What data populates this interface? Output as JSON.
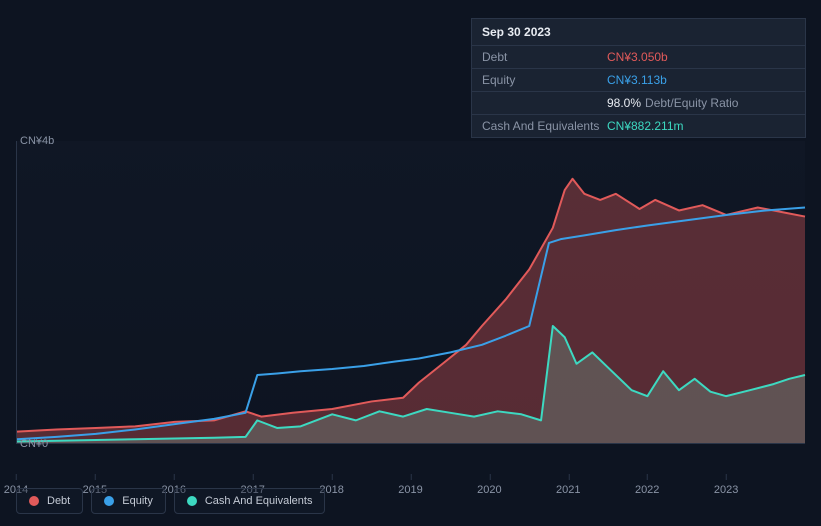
{
  "tooltip": {
    "date": "Sep 30 2023",
    "rows": [
      {
        "label": "Debt",
        "value": "CN¥3.050b",
        "color": "#e15a5a"
      },
      {
        "label": "Equity",
        "value": "CN¥3.113b",
        "color": "#3aa0e8"
      },
      {
        "label": "",
        "value": "98.0%",
        "extra": "Debt/Equity Ratio",
        "color": "#e8ecf2"
      },
      {
        "label": "Cash And Equivalents",
        "value": "CN¥882.211m",
        "color": "#3dd9c1"
      }
    ]
  },
  "chart": {
    "type": "area-line",
    "background_color": "#0d1421",
    "grid_color": "#2a3548",
    "y_axis": {
      "ticks": [
        {
          "value": 0,
          "label": "CN¥0"
        },
        {
          "value": 4,
          "label": "CN¥4b"
        }
      ],
      "min": 0,
      "max": 4
    },
    "x_axis": {
      "min": 2014,
      "max": 2024,
      "ticks": [
        2014,
        2015,
        2016,
        2017,
        2018,
        2019,
        2020,
        2021,
        2022,
        2023
      ]
    },
    "series": [
      {
        "name": "Debt",
        "color": "#e15a5a",
        "fill_opacity": 0.35,
        "line_width": 2,
        "points": [
          [
            2014.0,
            0.15
          ],
          [
            2014.5,
            0.18
          ],
          [
            2015.0,
            0.2
          ],
          [
            2015.5,
            0.22
          ],
          [
            2016.0,
            0.28
          ],
          [
            2016.5,
            0.3
          ],
          [
            2016.9,
            0.42
          ],
          [
            2017.1,
            0.35
          ],
          [
            2017.5,
            0.4
          ],
          [
            2018.0,
            0.45
          ],
          [
            2018.5,
            0.55
          ],
          [
            2018.9,
            0.6
          ],
          [
            2019.1,
            0.8
          ],
          [
            2019.4,
            1.05
          ],
          [
            2019.7,
            1.3
          ],
          [
            2019.9,
            1.55
          ],
          [
            2020.2,
            1.9
          ],
          [
            2020.5,
            2.3
          ],
          [
            2020.8,
            2.85
          ],
          [
            2020.95,
            3.35
          ],
          [
            2021.05,
            3.5
          ],
          [
            2021.2,
            3.3
          ],
          [
            2021.4,
            3.22
          ],
          [
            2021.6,
            3.3
          ],
          [
            2021.9,
            3.1
          ],
          [
            2022.1,
            3.22
          ],
          [
            2022.4,
            3.08
          ],
          [
            2022.7,
            3.15
          ],
          [
            2023.0,
            3.02
          ],
          [
            2023.4,
            3.12
          ],
          [
            2023.75,
            3.05
          ],
          [
            2024.0,
            3.0
          ]
        ]
      },
      {
        "name": "Equity",
        "color": "#3aa0e8",
        "fill_opacity": 0,
        "line_width": 2,
        "points": [
          [
            2014.0,
            0.05
          ],
          [
            2014.5,
            0.08
          ],
          [
            2015.0,
            0.12
          ],
          [
            2015.5,
            0.18
          ],
          [
            2016.0,
            0.25
          ],
          [
            2016.5,
            0.32
          ],
          [
            2016.9,
            0.4
          ],
          [
            2017.05,
            0.9
          ],
          [
            2017.3,
            0.92
          ],
          [
            2017.6,
            0.95
          ],
          [
            2018.0,
            0.98
          ],
          [
            2018.4,
            1.02
          ],
          [
            2018.8,
            1.08
          ],
          [
            2019.1,
            1.12
          ],
          [
            2019.5,
            1.2
          ],
          [
            2019.9,
            1.3
          ],
          [
            2020.2,
            1.42
          ],
          [
            2020.5,
            1.55
          ],
          [
            2020.75,
            2.65
          ],
          [
            2020.9,
            2.7
          ],
          [
            2021.2,
            2.75
          ],
          [
            2021.6,
            2.82
          ],
          [
            2022.0,
            2.88
          ],
          [
            2022.5,
            2.95
          ],
          [
            2023.0,
            3.02
          ],
          [
            2023.5,
            3.08
          ],
          [
            2024.0,
            3.12
          ]
        ]
      },
      {
        "name": "Cash And Equivalents",
        "color": "#3dd9c1",
        "fill_opacity": 0.3,
        "line_width": 2,
        "points": [
          [
            2014.0,
            0.02
          ],
          [
            2014.5,
            0.03
          ],
          [
            2015.0,
            0.04
          ],
          [
            2015.5,
            0.05
          ],
          [
            2016.0,
            0.06
          ],
          [
            2016.5,
            0.07
          ],
          [
            2016.9,
            0.08
          ],
          [
            2017.05,
            0.3
          ],
          [
            2017.3,
            0.2
          ],
          [
            2017.6,
            0.22
          ],
          [
            2018.0,
            0.38
          ],
          [
            2018.3,
            0.3
          ],
          [
            2018.6,
            0.42
          ],
          [
            2018.9,
            0.35
          ],
          [
            2019.2,
            0.45
          ],
          [
            2019.5,
            0.4
          ],
          [
            2019.8,
            0.35
          ],
          [
            2020.1,
            0.42
          ],
          [
            2020.4,
            0.38
          ],
          [
            2020.65,
            0.3
          ],
          [
            2020.8,
            1.55
          ],
          [
            2020.95,
            1.4
          ],
          [
            2021.1,
            1.05
          ],
          [
            2021.3,
            1.2
          ],
          [
            2021.5,
            1.0
          ],
          [
            2021.8,
            0.7
          ],
          [
            2022.0,
            0.62
          ],
          [
            2022.2,
            0.95
          ],
          [
            2022.4,
            0.7
          ],
          [
            2022.6,
            0.85
          ],
          [
            2022.8,
            0.68
          ],
          [
            2023.0,
            0.62
          ],
          [
            2023.3,
            0.7
          ],
          [
            2023.6,
            0.78
          ],
          [
            2023.8,
            0.85
          ],
          [
            2024.0,
            0.9
          ]
        ]
      }
    ],
    "legend": [
      {
        "label": "Debt",
        "color": "#e15a5a"
      },
      {
        "label": "Equity",
        "color": "#3aa0e8"
      },
      {
        "label": "Cash And Equivalents",
        "color": "#3dd9c1"
      }
    ]
  }
}
